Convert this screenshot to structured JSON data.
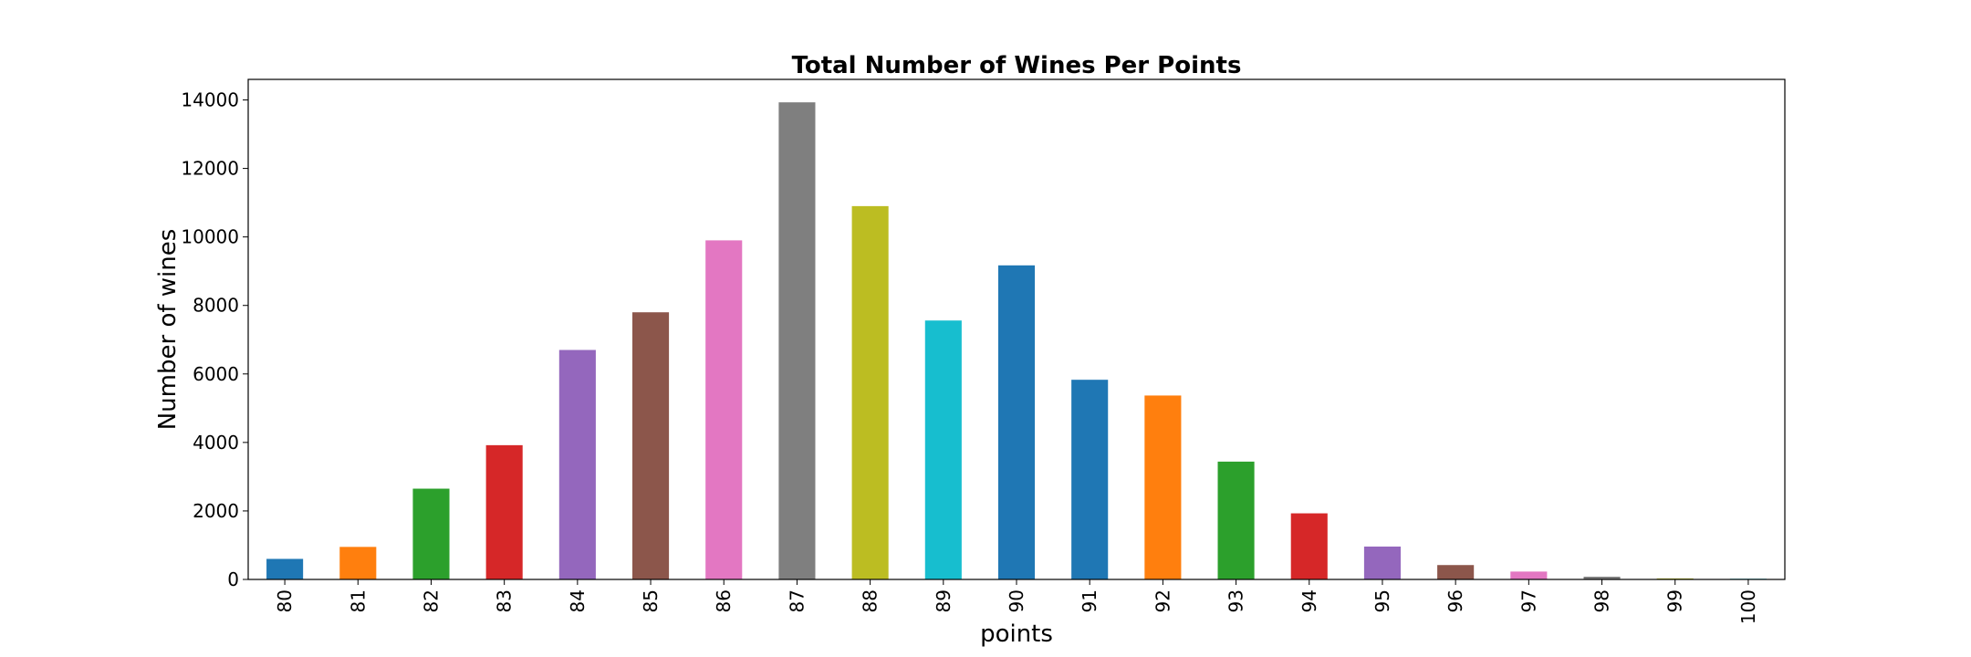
{
  "chart_data": {
    "type": "bar",
    "title": "Total Number of Wines Per Points",
    "xlabel": "points",
    "ylabel": "Number of wines",
    "categories": [
      "80",
      "81",
      "82",
      "83",
      "84",
      "85",
      "86",
      "87",
      "88",
      "89",
      "90",
      "91",
      "92",
      "93",
      "94",
      "95",
      "96",
      "97",
      "98",
      "99",
      "100"
    ],
    "values": [
      600,
      950,
      2650,
      3920,
      6700,
      7800,
      9900,
      13930,
      10900,
      7560,
      9170,
      5830,
      5370,
      3440,
      1930,
      960,
      420,
      230,
      80,
      30,
      20
    ],
    "colors": [
      "#1f77b4",
      "#ff7f0e",
      "#2ca02c",
      "#d62728",
      "#9467bd",
      "#8c564b",
      "#e377c2",
      "#7f7f7f",
      "#bcbd22",
      "#17becf",
      "#1f77b4",
      "#1f77b4",
      "#ff7f0e",
      "#2ca02c",
      "#d62728",
      "#9467bd",
      "#8c564b",
      "#e377c2",
      "#7f7f7f",
      "#bcbd22",
      "#17becf"
    ],
    "ylim": [
      0,
      14600
    ],
    "yticks": [
      0,
      2000,
      4000,
      6000,
      8000,
      10000,
      12000,
      14000
    ],
    "grid": false,
    "legend": false
  }
}
